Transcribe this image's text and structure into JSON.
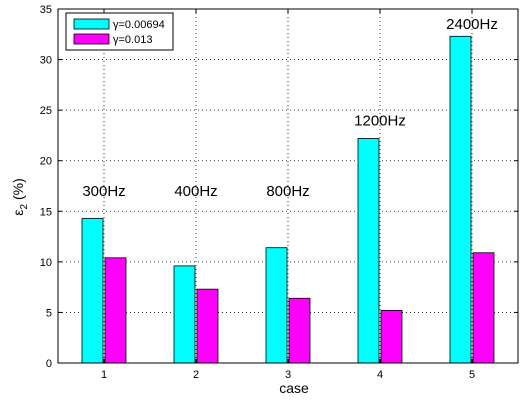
{
  "chart_data": {
    "type": "bar",
    "categories": [
      "1",
      "2",
      "3",
      "4",
      "5"
    ],
    "series": [
      {
        "name": "γ=0.00694",
        "color": "#00ffff",
        "values": [
          14.3,
          9.6,
          11.4,
          22.2,
          32.3
        ]
      },
      {
        "name": "γ=0.013",
        "color": "#ff00ff",
        "values": [
          10.4,
          7.3,
          6.4,
          5.2,
          10.9
        ]
      }
    ],
    "annotations": [
      "300Hz",
      "400Hz",
      "800Hz",
      "1200Hz",
      "2400Hz"
    ],
    "annotation_y": [
      16.5,
      16.5,
      16.5,
      23.5,
      33.0
    ],
    "xlabel": "case",
    "ylabel_main": "ε",
    "ylabel_sub": "2",
    "ylabel_unit": "(%)",
    "ylim": [
      0,
      35
    ],
    "yticks": [
      0,
      5,
      10,
      15,
      20,
      25,
      30,
      35
    ],
    "grid": true,
    "legend_position": "top-left"
  }
}
